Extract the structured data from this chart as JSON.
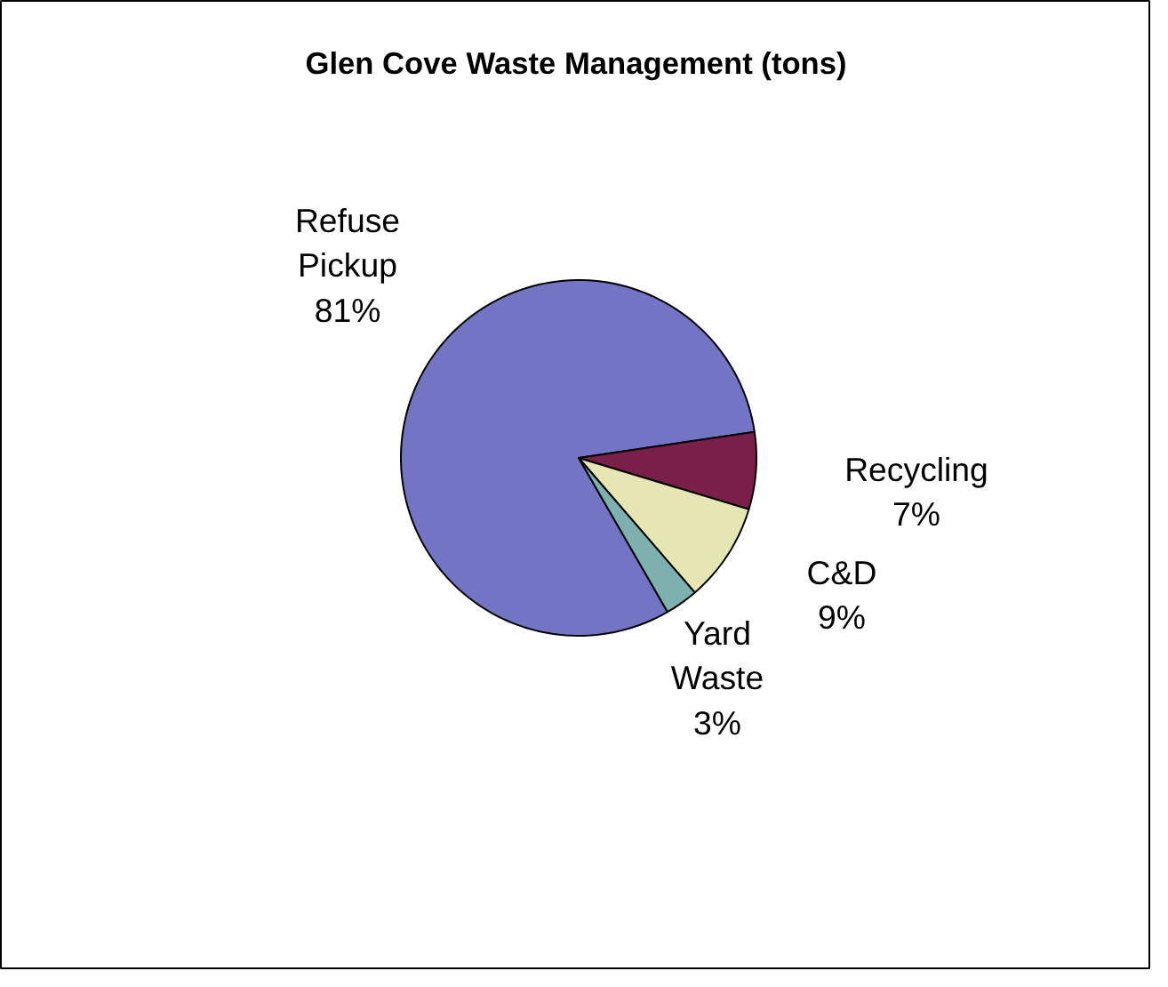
{
  "chart_data": {
    "type": "pie",
    "title": "Glen Cove Waste Management (tons)",
    "categories": [
      "Refuse\nPickup",
      "Recycling",
      "C&D",
      "Yard\nWaste"
    ],
    "values": [
      81,
      7,
      9,
      3
    ],
    "value_labels": [
      "81%",
      "7%",
      "9%",
      "3%"
    ],
    "colors": [
      "#7474c4",
      "#7a1f4a",
      "#e6e6b4",
      "#7fb0b0"
    ]
  }
}
